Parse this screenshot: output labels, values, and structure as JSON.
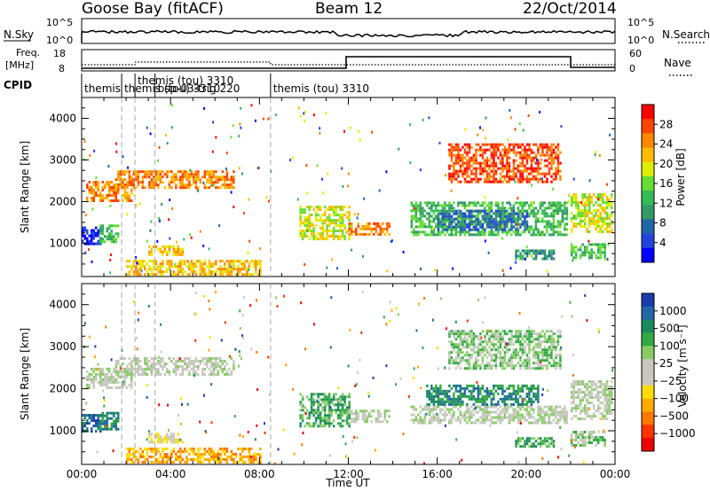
{
  "header": {
    "station": "Goose Bay (fitACF)",
    "beam": "Beam 12",
    "date": "22/Oct/2014"
  },
  "top_panels": {
    "noise_left_label": "N.Sky",
    "noise_right_label": "N.Search",
    "noise_ticks_left": [
      "10^5",
      "10^0"
    ],
    "noise_ticks_right": [
      "10^5",
      "10^0"
    ],
    "freq_left_label_1": "Freq.",
    "freq_left_label_2": "[MHz]",
    "freq_ticks": [
      "18",
      "8"
    ],
    "nave_label": "Nave",
    "nave_ticks": [
      "60",
      "0"
    ],
    "cpid_label": "CPID",
    "cpid_entries": [
      {
        "t": 0.0,
        "label": "themis"
      },
      {
        "t": 1.8,
        "label": "themis (tou) 3310"
      },
      {
        "t": 2.4,
        "label": "themis (tou) 3310"
      },
      {
        "t": 3.3,
        "label": "bsp-03-trig 220"
      },
      {
        "t": 8.5,
        "label": "themis (tou) 3310"
      }
    ]
  },
  "colorbars": {
    "power": {
      "label": "Power [dB]",
      "ticks": [
        "28",
        "24",
        "20",
        "16",
        "12",
        "8",
        "4"
      ],
      "colors": [
        "#ff0000",
        "#ff4400",
        "#ff8800",
        "#ffbb00",
        "#ddee00",
        "#66dd33",
        "#33bb55",
        "#339966",
        "#2266aa",
        "#2244dd",
        "#0000ff"
      ]
    },
    "velocity": {
      "label": "Velocity [m s⁻¹]",
      "ticks": [
        "1000",
        "500",
        "100",
        "25",
        "−25",
        "−100",
        "−500",
        "−1000"
      ],
      "colors": [
        "#1a3caa",
        "#2266aa",
        "#1b8a5e",
        "#33aa44",
        "#88cc66",
        "#c8c8c0",
        "#c8c8c0",
        "#ffdd00",
        "#ffaa00",
        "#ff7700",
        "#ff3300",
        "#ee0000"
      ]
    }
  },
  "chart_data": [
    {
      "type": "heatmap",
      "title": "Power",
      "xlabel": "",
      "ylabel": "Slant Range [km]",
      "xlim": [
        0,
        24
      ],
      "ylim": [
        200,
        4500
      ],
      "yticks": [
        "1000",
        "2000",
        "3000",
        "4000"
      ],
      "regions": [
        {
          "t0": 0.0,
          "t1": 0.8,
          "r0": 1000,
          "r1": 1400,
          "level": 10
        },
        {
          "t0": 0.8,
          "t1": 1.6,
          "r0": 1050,
          "r1": 1450,
          "level": 6
        },
        {
          "t0": 0.2,
          "t1": 2.2,
          "r0": 2000,
          "r1": 2500,
          "level": 2
        },
        {
          "t0": 1.5,
          "t1": 6.8,
          "r0": 2350,
          "r1": 2750,
          "level": 2
        },
        {
          "t0": 3.0,
          "t1": 4.5,
          "r0": 700,
          "r1": 950,
          "level": 3
        },
        {
          "t0": 2.0,
          "t1": 8.0,
          "r0": 250,
          "r1": 600,
          "level": 3
        },
        {
          "t0": 9.8,
          "t1": 12.0,
          "r0": 1100,
          "r1": 1900,
          "level": 4
        },
        {
          "t0": 12.0,
          "t1": 13.8,
          "r0": 1200,
          "r1": 1500,
          "level": 2
        },
        {
          "t0": 14.8,
          "t1": 21.8,
          "r0": 1200,
          "r1": 2000,
          "level": 6
        },
        {
          "t0": 16.0,
          "t1": 20.0,
          "r0": 1350,
          "r1": 1800,
          "level": 8
        },
        {
          "t0": 19.5,
          "t1": 21.2,
          "r0": 650,
          "r1": 850,
          "level": 7
        },
        {
          "t0": 22.0,
          "t1": 23.5,
          "r0": 650,
          "r1": 1000,
          "level": 6
        },
        {
          "t0": 22.0,
          "t1": 23.8,
          "r0": 1300,
          "r1": 2200,
          "level": 4
        },
        {
          "t0": 16.5,
          "t1": 21.5,
          "r0": 2500,
          "r1": 3400,
          "level": 1
        }
      ]
    },
    {
      "type": "heatmap",
      "title": "Velocity",
      "xlabel": "Time UT",
      "ylabel": "Slant Range [km]",
      "xlim": [
        0,
        24
      ],
      "ylim": [
        200,
        4500
      ],
      "xticks": [
        "00:00",
        "04:00",
        "08:00",
        "12:00",
        "16:00",
        "20:00",
        "00:00"
      ],
      "yticks": [
        "1000",
        "2000",
        "3000",
        "4000"
      ],
      "regions": [
        {
          "t0": 0.0,
          "t1": 0.8,
          "r0": 1000,
          "r1": 1400,
          "level": 1
        },
        {
          "t0": 0.8,
          "t1": 1.6,
          "r0": 1050,
          "r1": 1450,
          "level": 2
        },
        {
          "t0": 0.2,
          "t1": 2.2,
          "r0": 2000,
          "r1": 2500,
          "level": 5
        },
        {
          "t0": 1.5,
          "t1": 6.8,
          "r0": 2350,
          "r1": 2750,
          "level": 5
        },
        {
          "t0": 3.0,
          "t1": 4.5,
          "r0": 700,
          "r1": 950,
          "level": 6
        },
        {
          "t0": 2.0,
          "t1": 8.0,
          "r0": 250,
          "r1": 600,
          "level": 8
        },
        {
          "t0": 9.8,
          "t1": 12.0,
          "r0": 1100,
          "r1": 1900,
          "level": 3
        },
        {
          "t0": 12.0,
          "t1": 13.8,
          "r0": 1200,
          "r1": 1500,
          "level": 5
        },
        {
          "t0": 14.8,
          "t1": 21.8,
          "r0": 1200,
          "r1": 1600,
          "level": 5
        },
        {
          "t0": 15.5,
          "t1": 20.5,
          "r0": 1600,
          "r1": 2100,
          "level": 2
        },
        {
          "t0": 19.5,
          "t1": 21.2,
          "r0": 650,
          "r1": 850,
          "level": 3
        },
        {
          "t0": 22.0,
          "t1": 23.5,
          "r0": 650,
          "r1": 1000,
          "level": 4
        },
        {
          "t0": 22.0,
          "t1": 23.8,
          "r0": 1300,
          "r1": 2200,
          "level": 5
        },
        {
          "t0": 16.5,
          "t1": 21.5,
          "r0": 2500,
          "r1": 3400,
          "level": 4
        }
      ]
    }
  ]
}
